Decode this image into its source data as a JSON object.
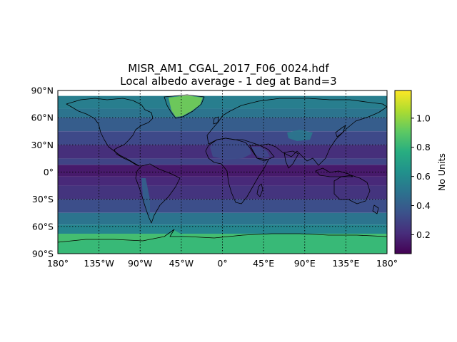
{
  "title_line1": "MISR_AM1_CGAL_2017_F06_0024.hdf",
  "title_line2": "Local albedo average - 1 deg at Band=3",
  "map": {
    "projection": "plate-carree",
    "lon_range": [
      -180,
      180
    ],
    "lat_range": [
      -90,
      90
    ],
    "data_lat_coverage": [
      -90,
      84
    ],
    "colormap": "viridis",
    "coastlines": true,
    "graticule": "dotted",
    "lat_ticks": [
      {
        "value": 90,
        "label": "90°N"
      },
      {
        "value": 60,
        "label": "60°N"
      },
      {
        "value": 30,
        "label": "30°N"
      },
      {
        "value": 0,
        "label": "0°"
      },
      {
        "value": -30,
        "label": "30°S"
      },
      {
        "value": -60,
        "label": "60°S"
      },
      {
        "value": -90,
        "label": "90°S"
      }
    ],
    "lon_ticks": [
      {
        "value": -180,
        "label": "180°"
      },
      {
        "value": -135,
        "label": "135°W"
      },
      {
        "value": -90,
        "label": "90°W"
      },
      {
        "value": -45,
        "label": "45°W"
      },
      {
        "value": 0,
        "label": "0°"
      },
      {
        "value": 45,
        "label": "45°E"
      },
      {
        "value": 90,
        "label": "90°E"
      },
      {
        "value": 135,
        "label": "135°E"
      },
      {
        "value": 180,
        "label": "180°"
      }
    ]
  },
  "colorbar": {
    "label": "No Units",
    "range": [
      0.07,
      1.19
    ],
    "ticks": [
      {
        "value": 0.2,
        "label": "0.2"
      },
      {
        "value": 0.4,
        "label": "0.4"
      },
      {
        "value": 0.6,
        "label": "0.6"
      },
      {
        "value": 0.8,
        "label": "0.8"
      },
      {
        "value": 1.0,
        "label": "1.0"
      }
    ]
  },
  "albedo_zones": [
    {
      "lat_from": 84,
      "lat_to": 70,
      "value": 0.55
    },
    {
      "lat_from": 70,
      "lat_to": 60,
      "value": 0.5
    },
    {
      "lat_from": 60,
      "lat_to": 45,
      "value": 0.4
    },
    {
      "lat_from": 45,
      "lat_to": 30,
      "value": 0.32
    },
    {
      "lat_from": 30,
      "lat_to": 15,
      "value": 0.22
    },
    {
      "lat_from": 15,
      "lat_to": 8,
      "value": 0.3
    },
    {
      "lat_from": 8,
      "lat_to": -5,
      "value": 0.15
    },
    {
      "lat_from": -5,
      "lat_to": -15,
      "value": 0.2
    },
    {
      "lat_from": -15,
      "lat_to": -30,
      "value": 0.24
    },
    {
      "lat_from": -30,
      "lat_to": -45,
      "value": 0.34
    },
    {
      "lat_from": -45,
      "lat_to": -58,
      "value": 0.5
    },
    {
      "lat_from": -58,
      "lat_to": -68,
      "value": 0.58
    },
    {
      "lat_from": -68,
      "lat_to": -90,
      "value": 0.85
    }
  ],
  "albedo_features": [
    {
      "name": "greenland-ice",
      "value": 0.95
    },
    {
      "name": "antarctica-ice",
      "value": 0.82
    },
    {
      "name": "sahara",
      "value": 0.34
    },
    {
      "name": "arabia",
      "value": 0.32
    },
    {
      "name": "tibet",
      "value": 0.52
    },
    {
      "name": "andes",
      "value": 0.42
    }
  ]
}
